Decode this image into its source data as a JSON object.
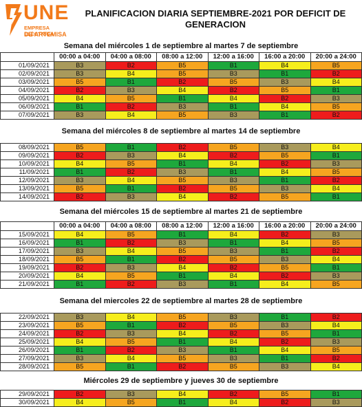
{
  "header": {
    "logo": "UNE",
    "company_lines": [
      "EMPRESA ELÉCTRICA",
      "DE ARTEMISA"
    ],
    "title": "PLANIFICACION DIARIA SEPTIEMBRE-2021 POR DEFICIT DE GENERACION"
  },
  "time_slots": [
    "00:00 a 04:00",
    "04:00 a 08:00",
    "08:00 a 12:00",
    "12:00 a 16:00",
    "16:00 a 20:00",
    "20:00 a 24:00"
  ],
  "block_colors": {
    "B1": "#1ea83c",
    "B2": "#ee1c1c",
    "B3": "#a99a5c",
    "B4": "#f6ee1c",
    "B5": "#f6a520"
  },
  "weeks": [
    {
      "title": "Semana del miércoles 1 de septiembre al martes 7 de septiembre",
      "show_slots": true,
      "rows": [
        {
          "date": "01/09/2021",
          "blocks": [
            "B3",
            "B2",
            "B5",
            "B1",
            "B4",
            "B5"
          ]
        },
        {
          "date": "02/09/2021",
          "blocks": [
            "B3",
            "B4",
            "B5",
            "B3",
            "B1",
            "B2"
          ]
        },
        {
          "date": "03/09/2021",
          "blocks": [
            "B5",
            "B1",
            "B2",
            "B5",
            "B3",
            "B4"
          ]
        },
        {
          "date": "04/09/2021",
          "blocks": [
            "B2",
            "B3",
            "B4",
            "B2",
            "B5",
            "B1"
          ]
        },
        {
          "date": "05/09/2021",
          "blocks": [
            "B4",
            "B5",
            "B1",
            "B4",
            "B2",
            "B3"
          ]
        },
        {
          "date": "06/09/2021",
          "blocks": [
            "B1",
            "B2",
            "B3",
            "B1",
            "B4",
            "B5"
          ]
        },
        {
          "date": "07/09/2021",
          "blocks": [
            "B3",
            "B4",
            "B5",
            "B3",
            "B1",
            "B2"
          ]
        }
      ]
    },
    {
      "title": "Semana del miércoles 8 de septiembre al martes 14 de septiembre",
      "show_slots": false,
      "rows": [
        {
          "date": "08/09/2021",
          "blocks": [
            "B5",
            "B1",
            "B2",
            "B5",
            "B3",
            "B4"
          ]
        },
        {
          "date": "09/09/2021",
          "blocks": [
            "B2",
            "B3",
            "B4",
            "B2",
            "B5",
            "B1"
          ]
        },
        {
          "date": "10/09/2021",
          "blocks": [
            "B4",
            "B5",
            "B1",
            "B4",
            "B2",
            "B3"
          ]
        },
        {
          "date": "11/09/2021",
          "blocks": [
            "B1",
            "B2",
            "B3",
            "B1",
            "B4",
            "B5"
          ]
        },
        {
          "date": "12/09/2021",
          "blocks": [
            "B3",
            "B4",
            "B5",
            "B3",
            "B1",
            "B2"
          ]
        },
        {
          "date": "13/09/2021",
          "blocks": [
            "B5",
            "B1",
            "B2",
            "B5",
            "B3",
            "B4"
          ]
        },
        {
          "date": "14/09/2021",
          "blocks": [
            "B2",
            "B3",
            "B4",
            "B2",
            "B5",
            "B1"
          ]
        }
      ]
    },
    {
      "title": "Semana del miércoles 15 de septiembre al martes 21 de septiembre",
      "show_slots": true,
      "rows": [
        {
          "date": "15/09/2021",
          "blocks": [
            "B4",
            "B5",
            "B1",
            "B4",
            "B2",
            "B3"
          ]
        },
        {
          "date": "16/09/2021",
          "blocks": [
            "B1",
            "B2",
            "B3",
            "B1",
            "B4",
            "B5"
          ]
        },
        {
          "date": "17/09/2021",
          "blocks": [
            "B3",
            "B4",
            "B5",
            "B3",
            "B1",
            "B2"
          ]
        },
        {
          "date": "18/09/2021",
          "blocks": [
            "B5",
            "B1",
            "B2",
            "B5",
            "B3",
            "B4"
          ]
        },
        {
          "date": "19/09/2021",
          "blocks": [
            "B2",
            "B3",
            "B4",
            "B2",
            "B5",
            "B1"
          ]
        },
        {
          "date": "20/09/2021",
          "blocks": [
            "B4",
            "B5",
            "B1",
            "B4",
            "B2",
            "B3"
          ]
        },
        {
          "date": "21/09/2021",
          "blocks": [
            "B1",
            "B2",
            "B3",
            "B1",
            "B4",
            "B5"
          ]
        }
      ]
    },
    {
      "title": "Semana del miercoles 22 de septiembre al martes 28 de septiembre",
      "show_slots": false,
      "rows": [
        {
          "date": "22/09/2021",
          "blocks": [
            "B3",
            "B4",
            "B5",
            "B3",
            "B1",
            "B2"
          ]
        },
        {
          "date": "23/09/2021",
          "blocks": [
            "B5",
            "B1",
            "B2",
            "B5",
            "B3",
            "B4"
          ]
        },
        {
          "date": "24/09/2021",
          "blocks": [
            "B2",
            "B3",
            "B4",
            "B2",
            "B5",
            "B1"
          ]
        },
        {
          "date": "25/09/2021",
          "blocks": [
            "B4",
            "B5",
            "B1",
            "B4",
            "B2",
            "B3"
          ]
        },
        {
          "date": "26/09/2021",
          "blocks": [
            "B1",
            "B2",
            "B3",
            "B1",
            "B4",
            "B5"
          ]
        },
        {
          "date": "27/09/2021",
          "blocks": [
            "B3",
            "B4",
            "B5",
            "B3",
            "B1",
            "B2"
          ]
        },
        {
          "date": "28/09/2021",
          "blocks": [
            "B5",
            "B1",
            "B2",
            "B5",
            "B3",
            "B4"
          ]
        }
      ]
    },
    {
      "title": "Miércoles 29 de septiembre y jueves 30 de septiembre",
      "show_slots": false,
      "rows": [
        {
          "date": "29/09/2021",
          "blocks": [
            "B2",
            "B3",
            "B4",
            "B2",
            "B5",
            "B1"
          ]
        },
        {
          "date": "30/09/2021",
          "blocks": [
            "B4",
            "B5",
            "B1",
            "B4",
            "B2",
            "B3"
          ]
        }
      ]
    }
  ]
}
